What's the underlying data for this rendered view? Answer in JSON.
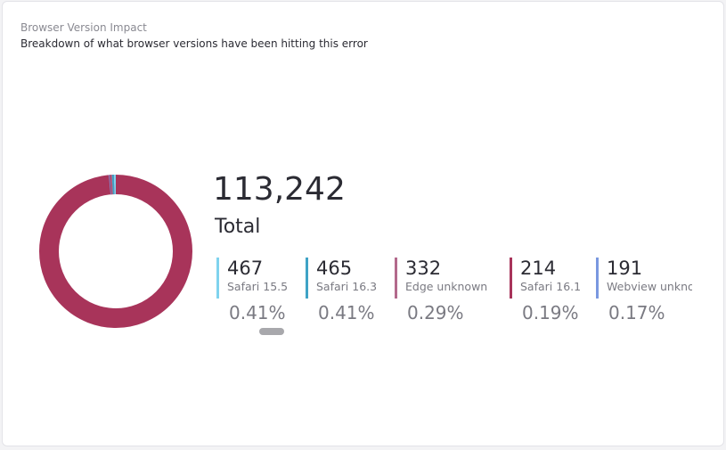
{
  "chart_data": {
    "type": "donut",
    "title": "Browser Version Impact",
    "subtitle": "Breakdown of what browser versions have been hitting this error",
    "total": {
      "value": 113242,
      "label": "113,242"
    },
    "total_caption": "Total",
    "remainder_color": "#a8345a",
    "categories": [
      "Safari 15.5",
      "Safari 16.3",
      "Edge unknown",
      "Safari 16.1",
      "Webview unknown"
    ],
    "values": [
      467,
      465,
      332,
      214,
      191
    ],
    "shares": [
      0.41,
      0.41,
      0.29,
      0.19,
      0.17
    ],
    "share_labels": [
      "0.41%",
      "0.41%",
      "0.29%",
      "0.19%",
      "0.17%"
    ],
    "colors": [
      "#7fd3ee",
      "#3fa3c6",
      "#b3698c",
      "#a8345a",
      "#7a98e0"
    ]
  }
}
